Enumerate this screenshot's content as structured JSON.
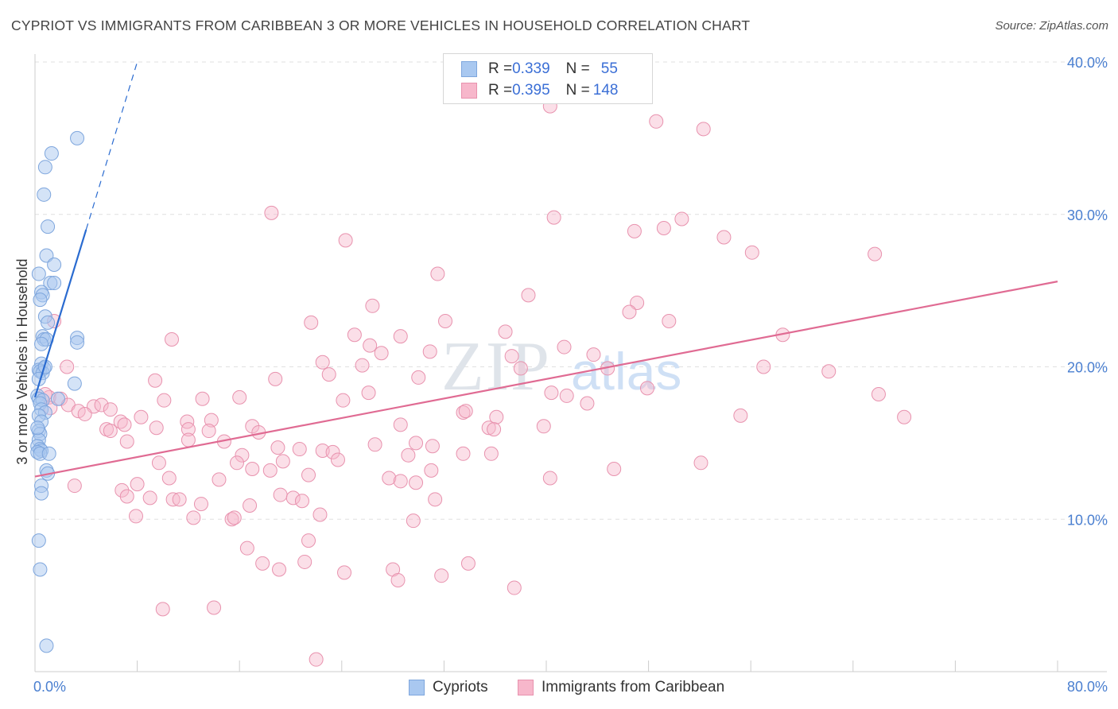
{
  "header": {
    "title": "CYPRIOT VS IMMIGRANTS FROM CARIBBEAN 3 OR MORE VEHICLES IN HOUSEHOLD CORRELATION CHART",
    "source": "Source: ZipAtlas.com"
  },
  "watermark": {
    "zip": "ZIP",
    "atlas": "atlas"
  },
  "legend": {
    "rows": [
      {
        "r_label": "R = ",
        "r_value": "0.339",
        "n_label": "N = ",
        "n_value": "55"
      },
      {
        "r_label": "R = ",
        "r_value": "0.395",
        "n_label": "N = ",
        "n_value": "148"
      }
    ]
  },
  "colors": {
    "cypriots_fill": "#a9c8f0",
    "cypriots_stroke": "#7ea6dd",
    "cypriots_line": "#2a6bd0",
    "caribbean_fill": "#f7b7cb",
    "caribbean_stroke": "#e892ae",
    "caribbean_line": "#e06b93",
    "axis_text": "#4a7fd0",
    "grid": "#e0e0e0"
  },
  "chart_data": {
    "type": "scatter",
    "title": "CYPRIOT VS IMMIGRANTS FROM CARIBBEAN 3 OR MORE VEHICLES IN HOUSEHOLD CORRELATION CHART",
    "xlabel": "",
    "ylabel": "3 or more Vehicles in Household",
    "xlim": [
      0,
      80
    ],
    "ylim": [
      0,
      40
    ],
    "x_tick_labels": [
      "0.0%",
      "80.0%"
    ],
    "y_ticks": [
      10,
      20,
      30,
      40
    ],
    "y_tick_labels": [
      "10.0%",
      "20.0%",
      "30.0%",
      "40.0%"
    ],
    "grid": true,
    "legend_position": "top-center",
    "series": [
      {
        "name": "Cypriots",
        "R": 0.339,
        "N": 55,
        "trend": {
          "x": [
            0.0,
            4.0
          ],
          "y": [
            18.0,
            29.0
          ],
          "dashed_to": [
            8.0,
            40.0
          ]
        },
        "points": [
          [
            3.3,
            35.0
          ],
          [
            1.3,
            34.0
          ],
          [
            0.8,
            33.1
          ],
          [
            0.7,
            31.3
          ],
          [
            1.0,
            29.2
          ],
          [
            0.9,
            27.3
          ],
          [
            1.5,
            26.7
          ],
          [
            0.3,
            26.1
          ],
          [
            1.2,
            25.5
          ],
          [
            1.5,
            25.5
          ],
          [
            0.5,
            24.9
          ],
          [
            0.6,
            24.7
          ],
          [
            0.4,
            24.4
          ],
          [
            0.8,
            23.3
          ],
          [
            1.0,
            22.9
          ],
          [
            3.3,
            21.9
          ],
          [
            3.3,
            21.6
          ],
          [
            0.6,
            22.0
          ],
          [
            0.7,
            21.8
          ],
          [
            0.9,
            21.8
          ],
          [
            0.5,
            21.5
          ],
          [
            0.5,
            20.2
          ],
          [
            0.7,
            19.9
          ],
          [
            0.3,
            19.8
          ],
          [
            0.4,
            19.7
          ],
          [
            0.6,
            19.6
          ],
          [
            0.3,
            19.2
          ],
          [
            3.1,
            18.9
          ],
          [
            0.2,
            18.1
          ],
          [
            0.3,
            17.9
          ],
          [
            0.6,
            17.8
          ],
          [
            1.8,
            17.9
          ],
          [
            0.4,
            17.6
          ],
          [
            0.5,
            17.2
          ],
          [
            0.8,
            17.0
          ],
          [
            0.3,
            16.8
          ],
          [
            0.5,
            16.4
          ],
          [
            0.3,
            15.8
          ],
          [
            0.4,
            15.6
          ],
          [
            0.3,
            15.2
          ],
          [
            0.2,
            14.8
          ],
          [
            0.4,
            14.6
          ],
          [
            0.5,
            14.5
          ],
          [
            0.2,
            14.4
          ],
          [
            0.4,
            14.3
          ],
          [
            1.1,
            14.3
          ],
          [
            0.9,
            13.2
          ],
          [
            1.0,
            13.0
          ],
          [
            0.5,
            12.2
          ],
          [
            0.5,
            11.7
          ],
          [
            0.3,
            8.6
          ],
          [
            0.4,
            6.7
          ],
          [
            0.9,
            1.7
          ],
          [
            0.8,
            20.0
          ],
          [
            0.2,
            16.0
          ]
        ]
      },
      {
        "name": "Immigrants from Caribbean",
        "R": 0.395,
        "N": 148,
        "trend": {
          "x": [
            0.0,
            80.0
          ],
          "y": [
            12.8,
            25.6
          ]
        },
        "points": [
          [
            41.9,
            37.8
          ],
          [
            40.3,
            37.1
          ],
          [
            48.6,
            36.1
          ],
          [
            52.3,
            35.6
          ],
          [
            18.5,
            30.1
          ],
          [
            40.6,
            29.8
          ],
          [
            50.6,
            29.7
          ],
          [
            49.2,
            29.1
          ],
          [
            46.9,
            28.9
          ],
          [
            53.9,
            28.5
          ],
          [
            24.3,
            28.3
          ],
          [
            56.1,
            27.5
          ],
          [
            65.7,
            27.4
          ],
          [
            31.5,
            26.1
          ],
          [
            38.6,
            24.7
          ],
          [
            47.1,
            24.2
          ],
          [
            26.4,
            24.0
          ],
          [
            46.5,
            23.6
          ],
          [
            49.6,
            23.0
          ],
          [
            32.1,
            23.0
          ],
          [
            21.6,
            22.9
          ],
          [
            36.8,
            22.3
          ],
          [
            25.0,
            22.1
          ],
          [
            28.6,
            22.0
          ],
          [
            58.5,
            22.1
          ],
          [
            10.7,
            21.8
          ],
          [
            26.2,
            21.4
          ],
          [
            41.4,
            21.3
          ],
          [
            27.1,
            20.9
          ],
          [
            37.3,
            20.7
          ],
          [
            43.7,
            20.8
          ],
          [
            25.6,
            20.1
          ],
          [
            38.0,
            19.9
          ],
          [
            44.8,
            19.9
          ],
          [
            57.0,
            20.0
          ],
          [
            62.1,
            19.7
          ],
          [
            23.0,
            19.5
          ],
          [
            30.0,
            19.3
          ],
          [
            9.4,
            19.1
          ],
          [
            18.8,
            19.2
          ],
          [
            47.9,
            18.6
          ],
          [
            26.1,
            18.3
          ],
          [
            40.4,
            18.3
          ],
          [
            41.6,
            18.1
          ],
          [
            66.0,
            18.2
          ],
          [
            1.1,
            18.0
          ],
          [
            2.0,
            17.9
          ],
          [
            10.1,
            17.8
          ],
          [
            13.1,
            17.9
          ],
          [
            16.0,
            18.0
          ],
          [
            24.1,
            17.8
          ],
          [
            43.2,
            17.6
          ],
          [
            2.6,
            17.5
          ],
          [
            4.6,
            17.4
          ],
          [
            5.2,
            17.5
          ],
          [
            5.9,
            17.2
          ],
          [
            3.4,
            17.1
          ],
          [
            3.9,
            16.9
          ],
          [
            8.3,
            16.7
          ],
          [
            33.5,
            17.0
          ],
          [
            33.7,
            17.1
          ],
          [
            36.1,
            16.7
          ],
          [
            55.2,
            16.8
          ],
          [
            68.0,
            16.7
          ],
          [
            6.7,
            16.4
          ],
          [
            11.9,
            16.4
          ],
          [
            13.8,
            16.5
          ],
          [
            7.0,
            16.2
          ],
          [
            17.0,
            16.1
          ],
          [
            28.6,
            16.2
          ],
          [
            35.5,
            16.0
          ],
          [
            5.6,
            15.9
          ],
          [
            9.5,
            16.0
          ],
          [
            12.0,
            15.9
          ],
          [
            5.9,
            15.8
          ],
          [
            13.6,
            15.8
          ],
          [
            17.5,
            15.7
          ],
          [
            35.9,
            15.9
          ],
          [
            39.8,
            16.1
          ],
          [
            7.2,
            15.1
          ],
          [
            12.0,
            15.2
          ],
          [
            14.8,
            15.1
          ],
          [
            26.6,
            14.9
          ],
          [
            29.8,
            15.0
          ],
          [
            31.1,
            14.8
          ],
          [
            19.0,
            14.7
          ],
          [
            20.7,
            14.6
          ],
          [
            22.5,
            14.5
          ],
          [
            23.3,
            14.4
          ],
          [
            33.5,
            14.3
          ],
          [
            35.7,
            14.3
          ],
          [
            16.2,
            14.2
          ],
          [
            29.2,
            14.2
          ],
          [
            19.4,
            13.8
          ],
          [
            23.7,
            13.9
          ],
          [
            9.7,
            13.7
          ],
          [
            15.8,
            13.7
          ],
          [
            52.1,
            13.7
          ],
          [
            17.0,
            13.3
          ],
          [
            18.4,
            13.2
          ],
          [
            31.0,
            13.2
          ],
          [
            45.3,
            13.3
          ],
          [
            10.5,
            12.7
          ],
          [
            14.4,
            12.6
          ],
          [
            21.4,
            12.9
          ],
          [
            27.7,
            12.7
          ],
          [
            28.6,
            12.5
          ],
          [
            29.8,
            12.4
          ],
          [
            40.3,
            12.7
          ],
          [
            3.1,
            12.2
          ],
          [
            8.0,
            12.3
          ],
          [
            6.8,
            11.9
          ],
          [
            7.2,
            11.5
          ],
          [
            9.0,
            11.4
          ],
          [
            10.8,
            11.3
          ],
          [
            11.3,
            11.3
          ],
          [
            19.2,
            11.6
          ],
          [
            20.2,
            11.4
          ],
          [
            20.9,
            11.2
          ],
          [
            31.3,
            11.3
          ],
          [
            13.0,
            11.0
          ],
          [
            16.8,
            10.9
          ],
          [
            7.9,
            10.2
          ],
          [
            12.4,
            10.1
          ],
          [
            15.4,
            10.0
          ],
          [
            15.6,
            10.1
          ],
          [
            22.3,
            10.3
          ],
          [
            29.6,
            9.9
          ],
          [
            16.6,
            8.1
          ],
          [
            21.4,
            8.6
          ],
          [
            17.8,
            7.1
          ],
          [
            21.1,
            7.2
          ],
          [
            19.1,
            6.7
          ],
          [
            24.2,
            6.5
          ],
          [
            28.0,
            6.7
          ],
          [
            28.4,
            6.0
          ],
          [
            31.8,
            6.3
          ],
          [
            33.9,
            7.1
          ],
          [
            37.5,
            5.5
          ],
          [
            10.0,
            4.1
          ],
          [
            14.0,
            4.2
          ],
          [
            22.0,
            0.8
          ],
          [
            22.5,
            20.3
          ],
          [
            30.9,
            21.0
          ],
          [
            2.5,
            20.0
          ],
          [
            1.5,
            23.0
          ],
          [
            0.8,
            18.2
          ],
          [
            1.2,
            17.3
          ]
        ]
      }
    ]
  }
}
